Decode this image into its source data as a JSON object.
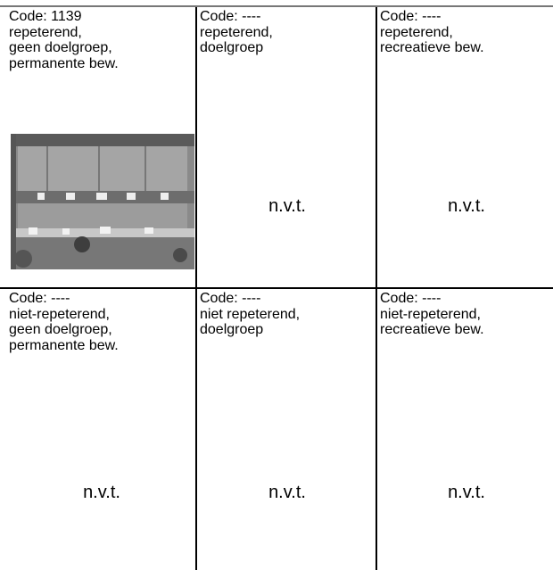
{
  "table": {
    "rows": [
      [
        {
          "lines": [
            "Code: 1139",
            "repeterend,",
            "geen doelgroep,",
            "permanente bew."
          ]
        },
        {
          "lines": [
            "Code: ----",
            "repeterend,",
            "doelgroep"
          ],
          "note": "n.v.t."
        },
        {
          "lines": [
            "Code: ----",
            "repeterend,",
            "recreatieve bew."
          ],
          "note": "n.v.t."
        }
      ],
      [
        {
          "lines": [
            "Code: ----",
            "niet-repeterend,",
            "geen doelgroep,",
            "permanente bew."
          ],
          "note": "n.v.t."
        },
        {
          "lines": [
            "Code: ----",
            "niet repeterend,",
            "doelgroep"
          ],
          "note": "n.v.t."
        },
        {
          "lines": [
            "Code: ----",
            "niet-repeterend,",
            "recreatieve bew."
          ],
          "note": "n.v.t."
        }
      ]
    ]
  }
}
